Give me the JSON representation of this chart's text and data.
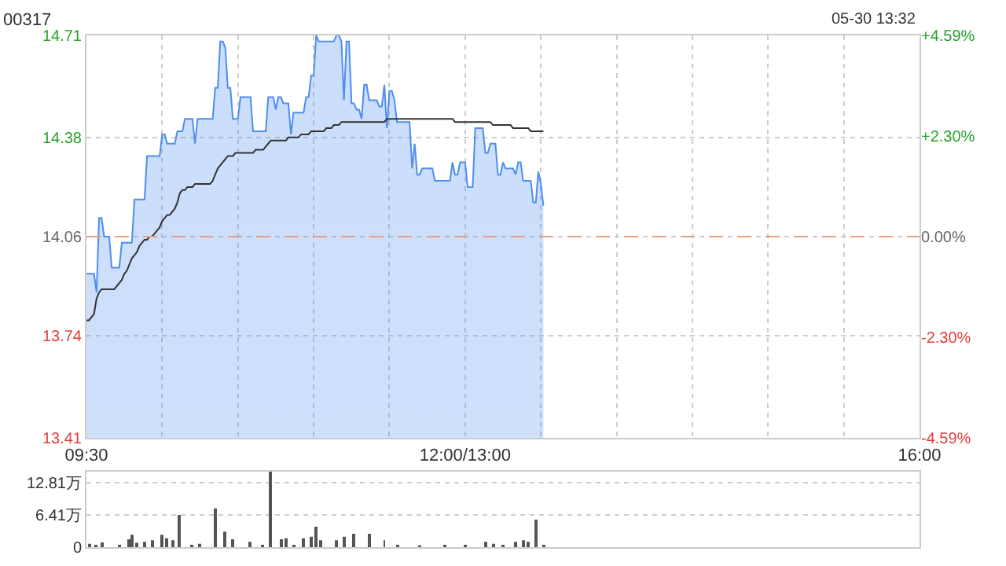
{
  "chart_data": [
    {
      "type": "area",
      "title": "00317",
      "annotations": [
        "05-30 13:32"
      ],
      "categories": [
        "09:30",
        null,
        null,
        null,
        null,
        null,
        null,
        null,
        null,
        null,
        null,
        null,
        null,
        null,
        null,
        null,
        null,
        null,
        null,
        null,
        null,
        null,
        null,
        null,
        null,
        null,
        null,
        null,
        null,
        null,
        null,
        null,
        null,
        null,
        null,
        null,
        null,
        null,
        null,
        null,
        null,
        null,
        null,
        null,
        null,
        null,
        null,
        null,
        null,
        null,
        null,
        null,
        null,
        null,
        null,
        null,
        null,
        null,
        null,
        null,
        null,
        null,
        null,
        null,
        null,
        null,
        null,
        null,
        null,
        null,
        null,
        null,
        null,
        null,
        null,
        null,
        null,
        null,
        null,
        null,
        null,
        null,
        null,
        null,
        null,
        null,
        null,
        null,
        null,
        null,
        null,
        null,
        null,
        null,
        null,
        null,
        null,
        null,
        null,
        null,
        null,
        null,
        null,
        null,
        null,
        null,
        null,
        null,
        null,
        null,
        null,
        null,
        null,
        null,
        null,
        null,
        null,
        null,
        null,
        null,
        null,
        null,
        null,
        null,
        null,
        null,
        null,
        null,
        null,
        null,
        null,
        null,
        null,
        null,
        null,
        null,
        null,
        null,
        null,
        null,
        null,
        null,
        null,
        null,
        null,
        null,
        null,
        null,
        null,
        null,
        "12:00/13:00",
        null,
        null,
        null,
        null,
        null,
        null,
        null,
        null,
        null,
        null,
        null,
        null,
        null,
        null,
        null,
        null,
        null,
        null,
        null,
        null,
        null,
        null,
        null,
        null,
        null,
        null,
        null,
        null,
        null,
        null,
        null,
        null,
        null,
        null,
        null,
        null,
        null,
        null,
        null,
        null,
        null,
        null,
        null,
        null,
        null,
        null,
        null,
        null,
        null,
        null,
        null,
        null,
        null,
        null,
        null,
        null,
        null,
        null,
        null,
        null,
        null,
        null,
        null,
        null,
        null,
        null,
        null,
        null,
        null,
        null,
        null,
        null,
        null,
        null,
        null,
        null,
        null,
        null,
        null,
        null,
        null,
        null,
        null,
        null,
        null,
        null,
        null,
        null,
        null,
        null,
        null,
        null,
        null,
        null,
        null,
        null,
        null,
        null,
        null,
        null,
        null,
        null,
        null,
        null,
        null,
        null,
        null,
        null,
        null,
        null,
        null,
        null,
        null,
        null,
        null,
        null,
        null,
        null,
        null,
        null,
        null,
        null,
        null,
        null,
        null,
        null,
        null,
        null,
        null,
        null,
        null,
        null,
        null,
        null,
        null,
        null,
        null,
        null,
        null,
        null,
        null,
        null,
        null,
        null,
        null,
        null,
        null,
        null,
        null,
        null,
        null,
        null,
        null,
        null,
        null,
        null,
        null,
        null,
        null,
        null,
        null,
        null,
        null,
        null,
        null,
        null,
        null,
        null,
        null,
        null,
        null,
        null,
        null,
        null,
        null,
        null,
        null,
        null,
        null,
        "16:00"
      ],
      "ylim": [
        13.41,
        14.71
      ],
      "yticks": [
        13.41,
        13.74,
        14.06,
        14.38,
        14.71
      ],
      "y2lim": [
        -4.59,
        4.59
      ],
      "y2ticks": [
        {
          "value": -4.59,
          "label": "-4.59%"
        },
        {
          "value": -2.3,
          "label": "-2.30%"
        },
        {
          "value": 0,
          "label": "0.00%"
        },
        {
          "value": 2.3,
          "label": "+2.30%"
        },
        {
          "value": 4.59,
          "label": "+4.59%"
        }
      ],
      "grid": true,
      "ref_lines": [
        {
          "axis": "y",
          "value": 14.06,
          "color": "#e8a080",
          "line_style": "dashed"
        }
      ],
      "series": [
        {
          "color": "#4e8ef0",
          "values": [
            13.94,
            13.94,
            13.94,
            13.94,
            13.88,
            14.12,
            14.12,
            14.06,
            14.06,
            14.06,
            13.96,
            13.96,
            13.96,
            13.96,
            14.04,
            14.04,
            14.04,
            14.04,
            14.04,
            14.18,
            14.18,
            14.18,
            14.18,
            14.18,
            14.32,
            14.32,
            14.32,
            14.32,
            14.32,
            14.32,
            14.39,
            14.39,
            14.36,
            14.36,
            14.36,
            14.36,
            14.4,
            14.4,
            14.4,
            14.44,
            14.44,
            14.44,
            14.44,
            14.36,
            14.44,
            14.44,
            14.44,
            14.44,
            14.44,
            14.44,
            14.44,
            14.54,
            14.54,
            14.69,
            14.69,
            14.67,
            14.54,
            14.54,
            14.44,
            14.44,
            14.44,
            14.51,
            14.51,
            14.51,
            14.51,
            14.51,
            14.4,
            14.4,
            14.4,
            14.4,
            14.4,
            14.4,
            14.51,
            14.51,
            14.51,
            14.47,
            14.51,
            14.51,
            14.49,
            14.49,
            14.49,
            14.39,
            14.46,
            14.46,
            14.46,
            14.46,
            14.46,
            14.51,
            14.51,
            14.58,
            14.58,
            14.71,
            14.69,
            14.69,
            14.69,
            14.69,
            14.69,
            14.69,
            14.69,
            14.71,
            14.71,
            14.69,
            14.5,
            14.69,
            14.69,
            14.49,
            14.49,
            14.47,
            14.47,
            14.44,
            14.55,
            14.55,
            14.5,
            14.5,
            14.5,
            14.5,
            14.48,
            14.48,
            14.55,
            14.41,
            14.53,
            14.53,
            14.5,
            14.43,
            14.43,
            14.43,
            14.43,
            14.43,
            14.43,
            14.28,
            14.36,
            14.26,
            14.26,
            14.28,
            14.28,
            14.28,
            14.28,
            14.28,
            14.24,
            14.24,
            14.24,
            14.24,
            14.24,
            14.24,
            14.24,
            14.3,
            14.26,
            14.26,
            14.3,
            14.3,
            14.3,
            14.22,
            14.22,
            14.22,
            14.41,
            14.41,
            14.41,
            14.41,
            14.33,
            14.33,
            14.36,
            14.36,
            14.36,
            14.26,
            14.26,
            14.3,
            14.28,
            14.28,
            14.28,
            14.28,
            14.26,
            14.3,
            14.3,
            14.24,
            14.24,
            14.24,
            14.24,
            14.17,
            14.17,
            14.27,
            14.23,
            14.16,
            null,
            null,
            null,
            null,
            null,
            null,
            null,
            null,
            null,
            null,
            null,
            null,
            null,
            null,
            null,
            null,
            null,
            null,
            null,
            null,
            null,
            null,
            null,
            null,
            null,
            null,
            null,
            null,
            null,
            null,
            null,
            null,
            null,
            null,
            null,
            null,
            null,
            null,
            null,
            null,
            null,
            null,
            null,
            null,
            null,
            null,
            null,
            null,
            null,
            null,
            null,
            null,
            null,
            null,
            null,
            null,
            null,
            null,
            null,
            null,
            null,
            null,
            null,
            null,
            null,
            null,
            null,
            null,
            null,
            null,
            null,
            null,
            null,
            null,
            null,
            null,
            null,
            null,
            null,
            null,
            null,
            null,
            null,
            null,
            null,
            null,
            null,
            null,
            null,
            null,
            null,
            null,
            null,
            null,
            null,
            null,
            null,
            null,
            null,
            null,
            null,
            null,
            null,
            null,
            null,
            null,
            null,
            null,
            null,
            null,
            null,
            null,
            null,
            null,
            null,
            null,
            null,
            null,
            null,
            null,
            null,
            null,
            null,
            null,
            null,
            null,
            null,
            null,
            null,
            null,
            null,
            null,
            null,
            null,
            null,
            null,
            null,
            null,
            null,
            null,
            null,
            null,
            null,
            null,
            null,
            null,
            null,
            null,
            null
          ]
        },
        {
          "type": "line",
          "color": "#333333",
          "values": [
            13.79,
            13.79,
            13.8,
            13.81,
            13.86,
            13.88,
            13.89,
            13.89,
            13.89,
            13.89,
            13.89,
            13.89,
            13.9,
            13.91,
            13.92,
            13.94,
            13.95,
            13.97,
            13.99,
            14.0,
            14.01,
            14.03,
            14.04,
            14.05,
            14.05,
            14.06,
            14.06,
            14.07,
            14.08,
            14.09,
            14.11,
            14.12,
            14.13,
            14.13,
            14.14,
            14.15,
            14.17,
            14.2,
            14.21,
            14.21,
            14.22,
            14.22,
            14.22,
            14.23,
            14.23,
            14.23,
            14.23,
            14.23,
            14.23,
            14.23,
            14.24,
            14.26,
            14.28,
            14.29,
            14.3,
            14.31,
            14.32,
            14.32,
            14.32,
            14.33,
            14.33,
            14.33,
            14.33,
            14.33,
            14.33,
            14.33,
            14.33,
            14.34,
            14.34,
            14.34,
            14.34,
            14.35,
            14.36,
            14.37,
            14.37,
            14.37,
            14.37,
            14.37,
            14.37,
            14.37,
            14.38,
            14.38,
            14.38,
            14.38,
            14.38,
            14.39,
            14.39,
            14.39,
            14.39,
            14.4,
            14.4,
            14.4,
            14.4,
            14.4,
            14.4,
            14.41,
            14.41,
            14.41,
            14.42,
            14.42,
            14.42,
            14.43,
            14.43,
            14.43,
            14.43,
            14.43,
            14.43,
            14.43,
            14.43,
            14.43,
            14.43,
            14.43,
            14.43,
            14.43,
            14.43,
            14.43,
            14.43,
            14.43,
            14.43,
            14.44,
            14.44,
            14.44,
            14.44,
            14.44,
            14.44,
            14.44,
            14.44,
            14.44,
            14.44,
            14.44,
            14.44,
            14.44,
            14.44,
            14.44,
            14.44,
            14.44,
            14.44,
            14.44,
            14.44,
            14.44,
            14.44,
            14.44,
            14.44,
            14.44,
            14.44,
            14.44,
            14.43,
            14.43,
            14.43,
            14.43,
            14.43,
            14.43,
            14.43,
            14.43,
            14.43,
            14.43,
            14.43,
            14.43,
            14.43,
            14.43,
            14.43,
            14.42,
            14.42,
            14.42,
            14.42,
            14.42,
            14.42,
            14.42,
            14.42,
            14.41,
            14.41,
            14.41,
            14.41,
            14.41,
            14.41,
            14.41,
            14.4,
            14.4,
            14.4,
            14.4,
            14.4,
            14.4,
            null,
            null,
            null,
            null,
            null,
            null,
            null,
            null,
            null,
            null,
            null,
            null,
            null,
            null,
            null,
            null,
            null,
            null,
            null,
            null,
            null,
            null,
            null,
            null,
            null,
            null,
            null,
            null,
            null,
            null,
            null,
            null,
            null,
            null,
            null,
            null,
            null,
            null,
            null,
            null,
            null,
            null,
            null,
            null,
            null,
            null,
            null,
            null,
            null,
            null,
            null,
            null,
            null,
            null,
            null,
            null,
            null,
            null,
            null,
            null,
            null,
            null,
            null,
            null,
            null,
            null,
            null,
            null,
            null,
            null,
            null,
            null,
            null,
            null,
            null,
            null,
            null,
            null,
            null,
            null,
            null,
            null,
            null,
            null,
            null,
            null,
            null,
            null,
            null,
            null,
            null,
            null,
            null,
            null,
            null,
            null,
            null,
            null,
            null,
            null,
            null,
            null,
            null,
            null,
            null,
            null,
            null,
            null,
            null,
            null,
            null,
            null,
            null,
            null,
            null,
            null,
            null,
            null,
            null,
            null,
            null,
            null,
            null,
            null,
            null,
            null,
            null,
            null,
            null,
            null,
            null,
            null,
            null,
            null,
            null,
            null,
            null,
            null,
            null,
            null,
            null,
            null,
            null,
            null,
            null,
            null,
            null,
            null,
            null
          ]
        }
      ]
    },
    {
      "type": "bar",
      "color": "#555555",
      "ylim": [
        0,
        15
      ],
      "yticks": [
        0,
        {
          "value": 6.41,
          "label": "6.41万"
        },
        {
          "value": 12.81,
          "label": "12.81万"
        }
      ],
      "tick_labels": "y",
      "grid": "y",
      "categories": [
        null,
        null,
        null,
        null,
        null,
        null,
        null,
        null,
        null,
        null,
        null,
        null,
        null,
        null,
        null,
        null,
        null,
        null,
        null,
        null,
        null,
        null,
        null,
        null,
        null,
        null,
        null,
        null,
        null,
        null,
        null,
        null,
        null,
        null,
        null,
        null,
        null,
        null,
        null,
        null,
        null,
        null,
        null,
        null,
        null,
        null,
        null,
        null,
        null,
        null,
        null,
        null,
        null,
        null,
        null,
        null,
        null,
        null,
        null,
        null,
        null,
        null,
        null,
        null,
        null,
        null,
        null,
        null,
        null,
        null,
        null,
        null,
        null,
        null,
        null,
        null,
        null,
        null,
        null,
        null,
        null,
        null,
        null,
        null,
        null,
        null,
        null,
        null,
        null,
        null,
        null,
        null,
        null,
        null,
        null,
        null,
        null,
        null,
        null,
        null,
        null,
        null,
        null,
        null,
        null,
        null,
        null,
        null,
        null,
        null,
        null,
        null,
        null,
        null,
        null,
        null,
        null,
        null,
        null,
        null,
        null,
        null,
        null,
        null,
        null,
        null,
        null,
        null,
        null,
        null,
        null,
        null,
        null,
        null,
        null,
        null,
        null,
        null,
        null,
        null,
        null,
        null,
        null,
        null,
        null,
        null,
        null,
        null,
        null,
        null,
        null,
        null,
        null,
        null,
        null,
        null,
        null,
        null,
        null,
        null,
        null,
        null,
        null,
        null,
        null,
        null,
        null,
        null,
        null,
        null,
        null,
        null,
        null,
        null,
        null,
        null,
        null,
        null,
        null,
        null,
        null,
        null,
        null,
        null,
        null,
        null,
        null,
        null,
        null,
        null,
        null,
        null,
        null,
        null,
        null,
        null,
        null,
        null,
        null,
        null,
        null,
        null,
        null,
        null,
        null,
        null,
        null,
        null,
        null,
        null,
        null,
        null,
        null,
        null,
        null,
        null,
        null,
        null,
        null,
        null,
        null,
        null,
        null,
        null,
        null,
        null,
        null,
        null,
        null,
        null,
        null,
        null,
        null,
        null,
        null,
        null,
        null,
        null,
        null,
        null,
        null,
        null,
        null,
        null,
        null,
        null,
        null,
        null,
        null,
        null,
        null,
        null,
        null,
        null,
        null,
        null,
        null,
        null,
        null,
        null,
        null,
        null,
        null,
        null,
        null,
        null,
        null,
        null,
        null,
        null,
        null,
        null,
        null,
        null,
        null,
        null,
        null,
        null,
        null,
        null,
        null,
        null,
        null,
        null,
        null,
        null,
        null,
        null,
        null,
        null,
        null,
        null,
        null,
        null,
        null,
        null,
        null,
        null,
        null,
        null,
        null,
        null,
        null,
        null,
        null,
        null,
        null,
        null,
        null,
        null,
        null,
        null,
        null,
        null,
        null,
        null,
        null,
        null,
        null,
        null,
        null,
        null,
        null,
        null,
        null,
        null,
        null,
        null,
        null,
        null,
        null
      ],
      "values": [
        null,
        0.7,
        null,
        null,
        0.5,
        null,
        1.0,
        null,
        null,
        null,
        null,
        null,
        null,
        0.5,
        null,
        null,
        null,
        1.6,
        2.5,
        null,
        0.9,
        null,
        null,
        1.1,
        null,
        null,
        1.4,
        null,
        null,
        null,
        2.5,
        null,
        1.8,
        null,
        1.4,
        null,
        null,
        6.4,
        null,
        null,
        null,
        null,
        0.5,
        null,
        null,
        0.7,
        null,
        null,
        null,
        null,
        null,
        7.7,
        null,
        null,
        null,
        3.1,
        null,
        null,
        1.6,
        null,
        null,
        null,
        null,
        null,
        null,
        1.1,
        null,
        null,
        null,
        null,
        0.5,
        null,
        null,
        15.0,
        null,
        null,
        null,
        1.6,
        null,
        1.8,
        null,
        null,
        0.5,
        null,
        null,
        null,
        1.8,
        null,
        null,
        2.1,
        null,
        4.1,
        null,
        1.4,
        null,
        null,
        null,
        null,
        null,
        1.4,
        null,
        null,
        2.1,
        null,
        null,
        null,
        2.7,
        null,
        null,
        null,
        null,
        null,
        2.7,
        null,
        null,
        null,
        null,
        null,
        1.4,
        null,
        null,
        null,
        null,
        0.5,
        null,
        null,
        null,
        null,
        null,
        null,
        null,
        null,
        0.3,
        null,
        null,
        null,
        null,
        null,
        null,
        null,
        null,
        null,
        0.5,
        null,
        null,
        null,
        null,
        null,
        null,
        null,
        0.5,
        null,
        null,
        null,
        null,
        null,
        null,
        null,
        1.1,
        null,
        null,
        0.7,
        null,
        null,
        null,
        0.5,
        null,
        null,
        null,
        null,
        1.1,
        null,
        null,
        1.4,
        null,
        1.1,
        null,
        null,
        5.5,
        null,
        null,
        0.5,
        null,
        null,
        null,
        null,
        null,
        null,
        null,
        null,
        null,
        null,
        null,
        null,
        null,
        null,
        null,
        null,
        null,
        null,
        null,
        null,
        null,
        null,
        null,
        null,
        null,
        null,
        null,
        null,
        null,
        null,
        null,
        null,
        null,
        null,
        null,
        null,
        null,
        null,
        null,
        null,
        null,
        null,
        null,
        null,
        null,
        null,
        null,
        null,
        null,
        null,
        null,
        null,
        null,
        null,
        null,
        null,
        null,
        null,
        null,
        null,
        null,
        null,
        null,
        null,
        null,
        null,
        null,
        null,
        null,
        null,
        null,
        null,
        null,
        null,
        null,
        null,
        null,
        null,
        null,
        null,
        null,
        null,
        null,
        null,
        null,
        null,
        null,
        null,
        null,
        null,
        null,
        null,
        null,
        null,
        null,
        null,
        null,
        null,
        null,
        null,
        null,
        null,
        null,
        null,
        null,
        null,
        null,
        null,
        null,
        null,
        null,
        null,
        null,
        null,
        null,
        null,
        null,
        null,
        null,
        null,
        null,
        null,
        null,
        null,
        null,
        null,
        null,
        null,
        null,
        null,
        null,
        null,
        null,
        null,
        null,
        null,
        null,
        null,
        null,
        null,
        null,
        null,
        null,
        null,
        null,
        null,
        null,
        null,
        null
      ]
    }
  ]
}
